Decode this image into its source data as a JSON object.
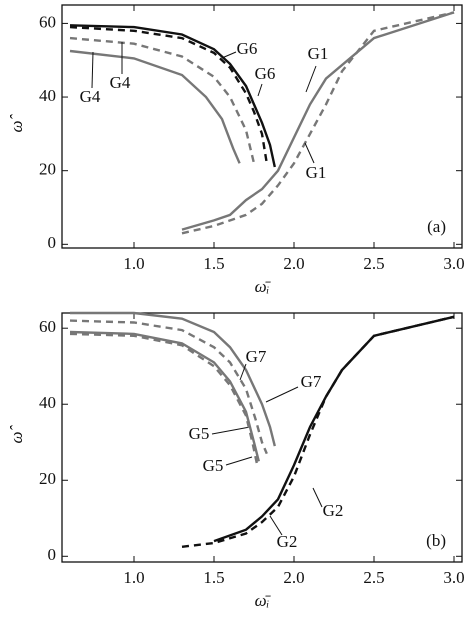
{
  "chart_data": [
    {
      "type": "line",
      "panel_label": "(a)",
      "xlabel": "ω̄ᵢ",
      "ylabel": "ω̂",
      "xlim": [
        0.55,
        3.05
      ],
      "ylim": [
        -1,
        65
      ],
      "xticks": [
        {
          "value": 1,
          "label": "1.0"
        },
        1.5,
        {
          "value": 2,
          "label": "2.0"
        },
        2.5,
        {
          "value": 3,
          "label": "3.0"
        }
      ],
      "yticks": [
        0,
        20,
        40,
        60
      ],
      "grid": false,
      "legend": false,
      "series": [
        {
          "name": "G6",
          "color": "#111111",
          "dashed": false,
          "x": [
            0.6,
            1.0,
            1.3,
            1.5,
            1.6,
            1.7,
            1.8,
            1.85,
            1.88
          ],
          "values": [
            59.5,
            59,
            57,
            53,
            49,
            43,
            33,
            27,
            21
          ]
        },
        {
          "name": "G6",
          "color": "#111111",
          "dashed": true,
          "x": [
            0.6,
            1.0,
            1.3,
            1.5,
            1.6,
            1.7,
            1.75,
            1.8,
            1.83
          ],
          "values": [
            59,
            58,
            56,
            52,
            48,
            41,
            36,
            30,
            22
          ]
        },
        {
          "name": "G4",
          "color": "#777777",
          "dashed": false,
          "x": [
            0.6,
            1.0,
            1.3,
            1.45,
            1.55,
            1.62,
            1.66
          ],
          "values": [
            52.5,
            50.5,
            46,
            40,
            34,
            26,
            22
          ]
        },
        {
          "name": "G4",
          "color": "#777777",
          "dashed": true,
          "x": [
            0.6,
            1.0,
            1.3,
            1.5,
            1.6,
            1.7,
            1.75
          ],
          "values": [
            56,
            54.5,
            51,
            45.5,
            40,
            31,
            22
          ]
        },
        {
          "name": "G1",
          "color": "#777777",
          "dashed": false,
          "x": [
            1.3,
            1.5,
            1.6,
            1.7,
            1.8,
            1.9,
            2.0,
            2.1,
            2.2,
            2.5,
            3.0
          ],
          "values": [
            4,
            6.5,
            8,
            12,
            15,
            20,
            29,
            38,
            45,
            56,
            63
          ]
        },
        {
          "name": "G1",
          "color": "#777777",
          "dashed": true,
          "x": [
            1.3,
            1.5,
            1.7,
            1.8,
            1.9,
            2.0,
            2.1,
            2.2,
            2.3,
            2.5,
            3.0
          ],
          "values": [
            3,
            5,
            8,
            11,
            16,
            22,
            30,
            38,
            47,
            58,
            63
          ]
        }
      ]
    },
    {
      "type": "line",
      "panel_label": "(b)",
      "xlabel": "ω̄ᵢ",
      "ylabel": "ω̂",
      "xlim": [
        0.55,
        3.05
      ],
      "ylim": [
        -1.5,
        64
      ],
      "xticks": [
        {
          "value": 1,
          "label": "1.0"
        },
        1.5,
        {
          "value": 2,
          "label": "2.0"
        },
        2.5,
        {
          "value": 3,
          "label": "3.0"
        }
      ],
      "yticks": [
        0,
        20,
        40,
        60
      ],
      "grid": false,
      "legend": false,
      "series": [
        {
          "name": "G7",
          "color": "#777777",
          "dashed": false,
          "x": [
            0.6,
            1.0,
            1.3,
            1.5,
            1.6,
            1.7,
            1.8,
            1.85,
            1.88
          ],
          "values": [
            64,
            64,
            62.5,
            59,
            55,
            49,
            40,
            34,
            29
          ]
        },
        {
          "name": "G7",
          "color": "#777777",
          "dashed": true,
          "x": [
            0.6,
            1.0,
            1.3,
            1.5,
            1.6,
            1.7,
            1.76,
            1.8,
            1.83
          ],
          "values": [
            62,
            61.5,
            59.5,
            55,
            51,
            44,
            36,
            30,
            27
          ]
        },
        {
          "name": "G5",
          "color": "#777777",
          "dashed": false,
          "x": [
            0.6,
            1.0,
            1.3,
            1.5,
            1.6,
            1.7,
            1.75,
            1.78
          ],
          "values": [
            59,
            58.5,
            56,
            51,
            46,
            38,
            30,
            25
          ]
        },
        {
          "name": "G5",
          "color": "#777777",
          "dashed": true,
          "x": [
            0.6,
            1.0,
            1.3,
            1.5,
            1.6,
            1.7,
            1.74,
            1.77
          ],
          "values": [
            58.5,
            58,
            55.5,
            50,
            45,
            37,
            30,
            24
          ]
        },
        {
          "name": "G2",
          "color": "#111111",
          "dashed": false,
          "x": [
            1.5,
            1.7,
            1.8,
            1.9,
            2.0,
            2.1,
            2.2,
            2.3,
            2.5,
            3.0
          ],
          "values": [
            4,
            7,
            10.5,
            15,
            24,
            34,
            42,
            49,
            58,
            63
          ]
        },
        {
          "name": "G2",
          "color": "#111111",
          "dashed": true,
          "x": [
            1.3,
            1.5,
            1.7,
            1.8,
            1.9,
            2.0,
            2.1,
            2.2,
            2.3,
            2.5,
            3.0
          ],
          "values": [
            2.5,
            3.5,
            6,
            9,
            13,
            21,
            32,
            42,
            49,
            58,
            63
          ]
        }
      ]
    }
  ]
}
